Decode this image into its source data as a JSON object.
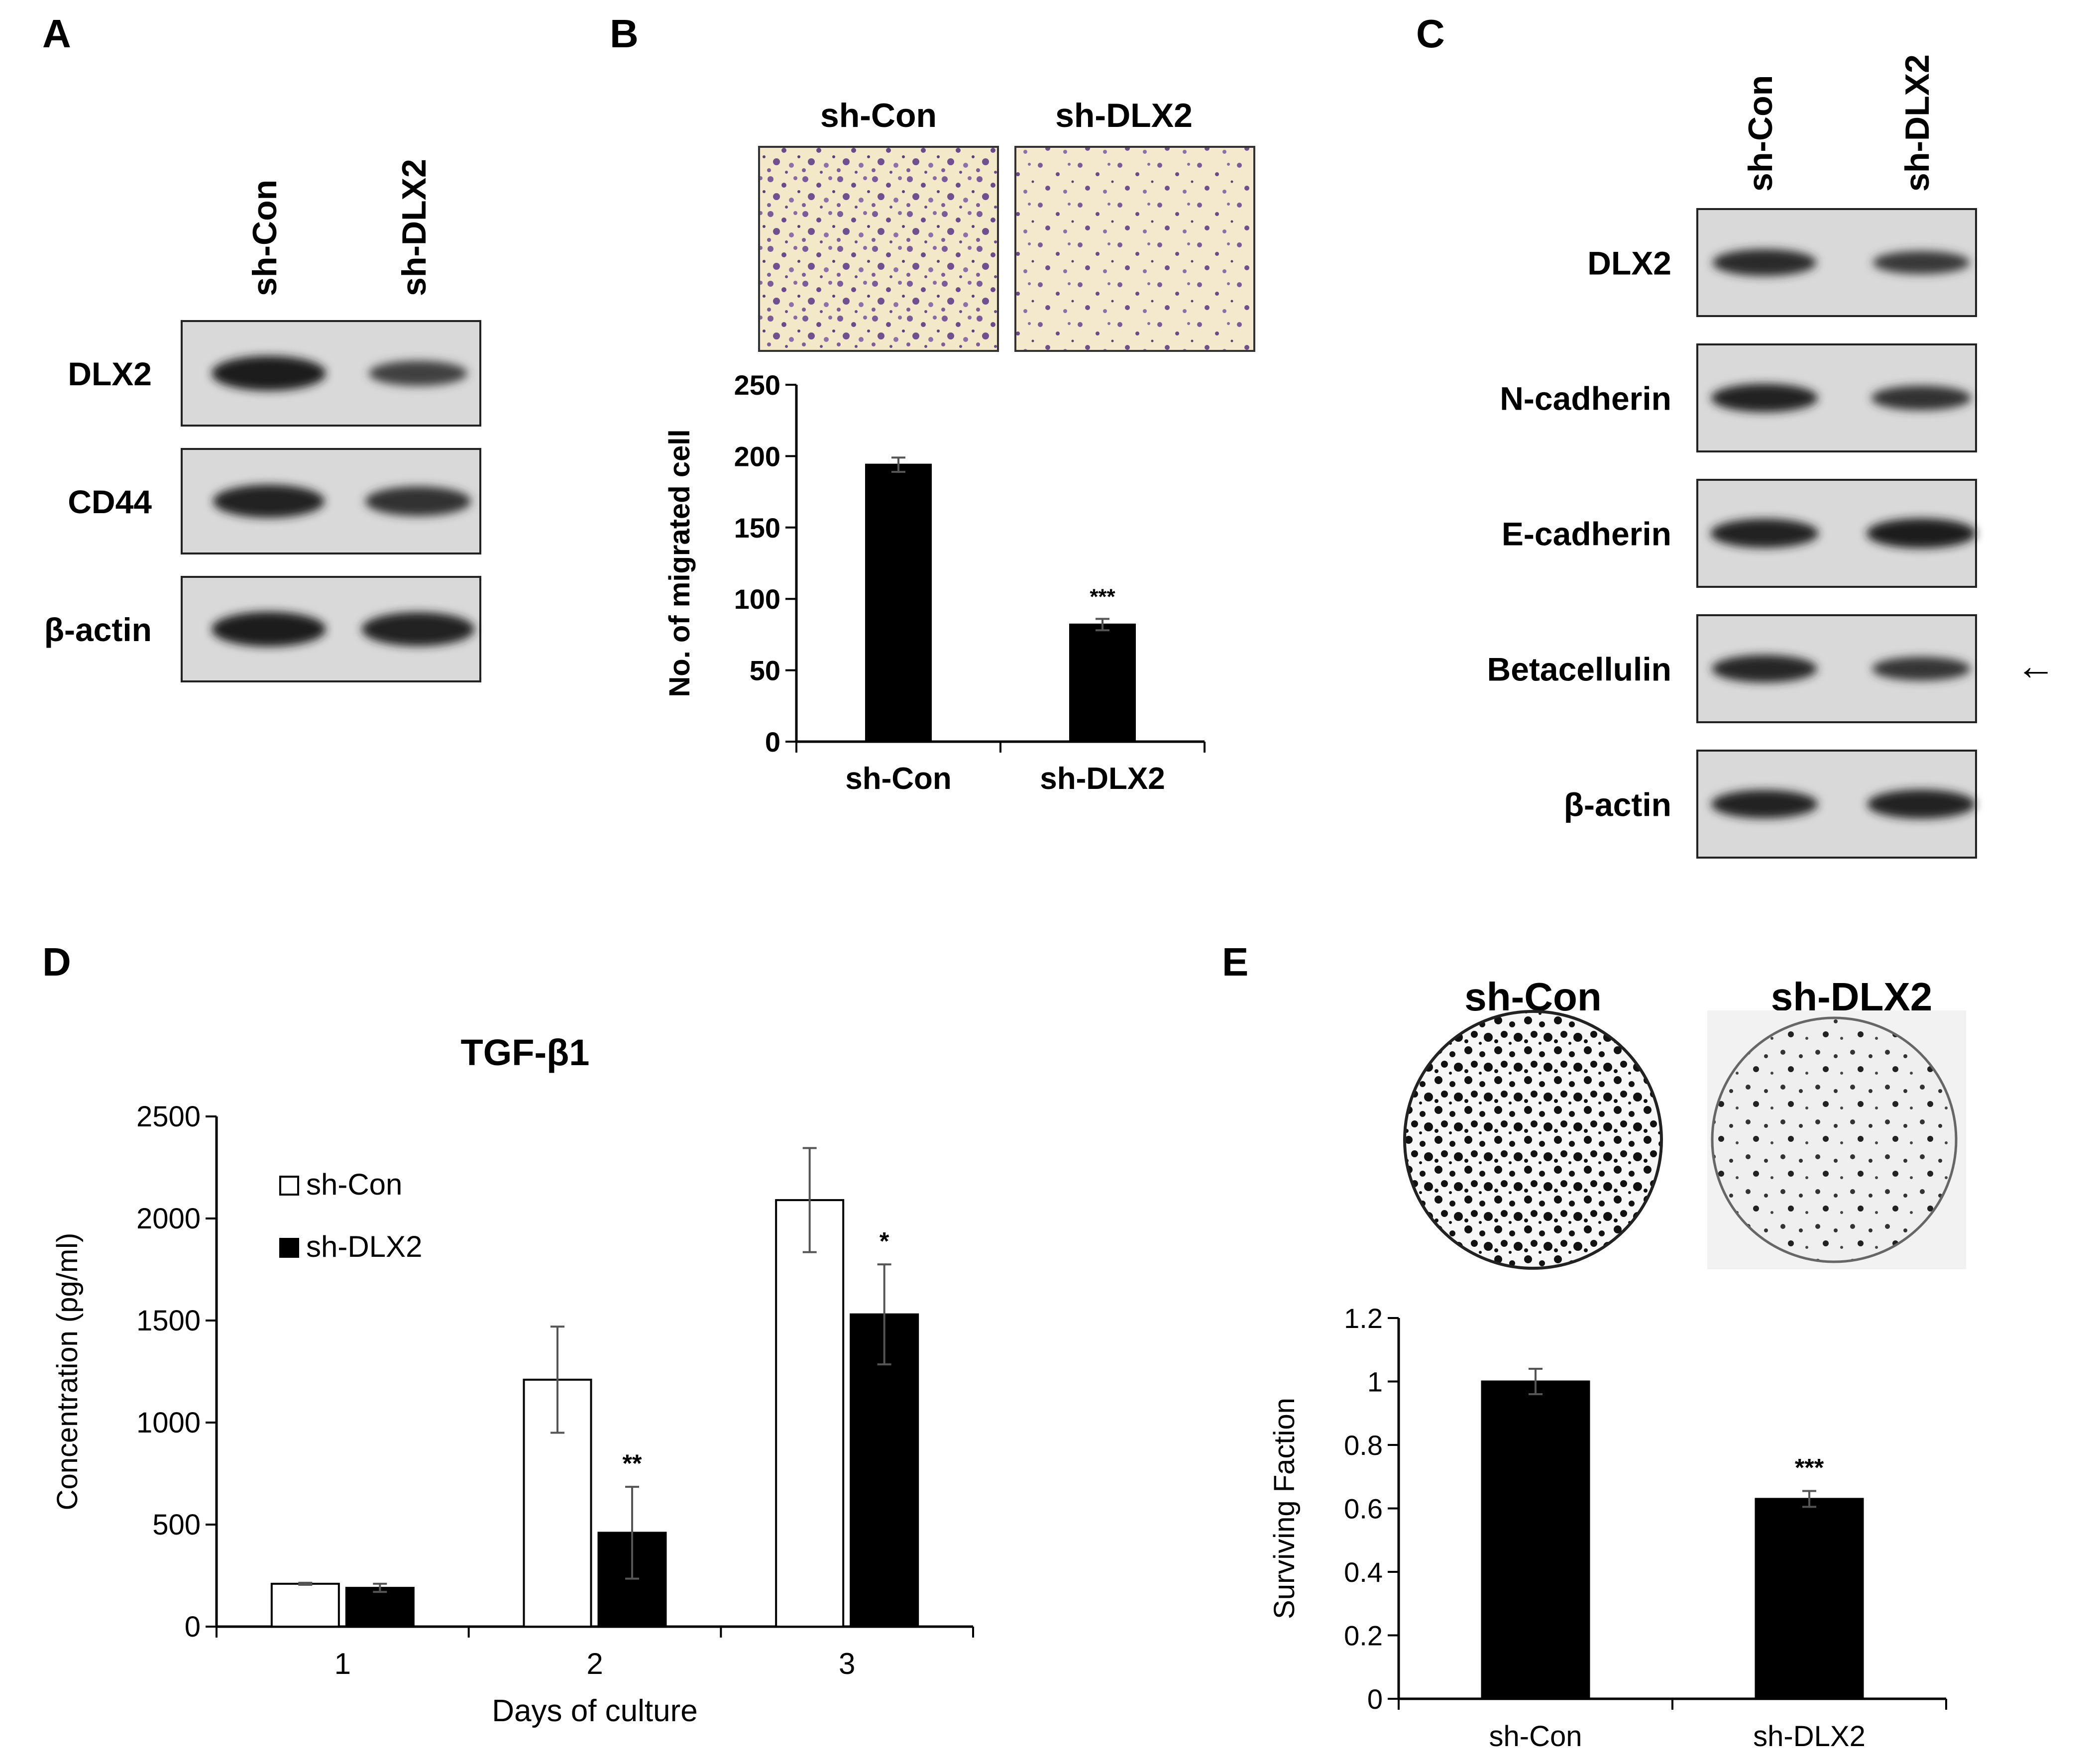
{
  "panels": {
    "a": {
      "letter": "A",
      "lanes": [
        "sh-Con",
        "sh-DLX2"
      ],
      "blots": [
        {
          "label": "DLX2",
          "band_strength": [
            1.0,
            0.45
          ]
        },
        {
          "label": "CD44",
          "band_strength": [
            0.9,
            0.7
          ]
        },
        {
          "label": "β-actin",
          "band_strength": [
            1.0,
            0.95
          ]
        }
      ]
    },
    "b": {
      "letter": "B",
      "image_labels": [
        "sh-Con",
        "sh-DLX2"
      ]
    },
    "c": {
      "letter": "C",
      "lanes": [
        "sh-Con",
        "sh-DLX2"
      ],
      "blots": [
        {
          "label": "DLX2",
          "band_strength": [
            0.8,
            0.55
          ]
        },
        {
          "label": "N-cadherin",
          "band_strength": [
            0.9,
            0.65
          ]
        },
        {
          "label": "E-cadherin",
          "band_strength": [
            0.95,
            1.0
          ]
        },
        {
          "label": "Betacellulin",
          "band_strength": [
            0.85,
            0.6
          ]
        },
        {
          "label": "β-actin",
          "band_strength": [
            0.9,
            0.95
          ]
        }
      ],
      "arrow": "←"
    },
    "d": {
      "letter": "D"
    },
    "e": {
      "letter": "E",
      "image_labels": [
        "sh-Con",
        "sh-DLX2"
      ]
    }
  },
  "chart_data": [
    {
      "panel": "B",
      "type": "bar",
      "categories": [
        "sh-Con",
        "sh-DLX2"
      ],
      "values": [
        194,
        82
      ],
      "errors": [
        5,
        4
      ],
      "significance": [
        "",
        "***"
      ],
      "ylabel": "No. of migrated cell",
      "xlabel": "",
      "ylim": [
        0,
        250
      ],
      "yticks": [
        0,
        50,
        100,
        150,
        200,
        250
      ],
      "bar_color": "#000000"
    },
    {
      "panel": "D",
      "type": "bar",
      "title": "TGF-β1",
      "categories": [
        "1",
        "2",
        "3"
      ],
      "series": [
        {
          "name": "sh-Con",
          "values": [
            210,
            1210,
            2090
          ],
          "errors": [
            5,
            260,
            255
          ],
          "significance": [
            "",
            "",
            ""
          ],
          "color": "#ffffff"
        },
        {
          "name": "sh-DLX2",
          "values": [
            190,
            460,
            1530
          ],
          "errors": [
            20,
            225,
            245
          ],
          "significance": [
            "",
            "**",
            "*"
          ],
          "color": "#000000"
        }
      ],
      "xlabel": "Days of culture",
      "ylabel": "Concentration (pg/ml)",
      "ylim": [
        0,
        2500
      ],
      "yticks": [
        0,
        500,
        1000,
        1500,
        2000,
        2500
      ],
      "legend": "top-left"
    },
    {
      "panel": "E",
      "type": "bar",
      "categories": [
        "sh-Con",
        "sh-DLX2"
      ],
      "values": [
        1.0,
        0.63
      ],
      "errors": [
        0.04,
        0.025
      ],
      "significance": [
        "",
        "***"
      ],
      "ylabel": "Surviving Faction",
      "xlabel": "",
      "ylim": [
        0,
        1.2
      ],
      "yticks": [
        "0",
        "0.2",
        "0.4",
        "0.6",
        "0.8",
        "1",
        "1.2"
      ],
      "bar_color": "#000000"
    }
  ]
}
